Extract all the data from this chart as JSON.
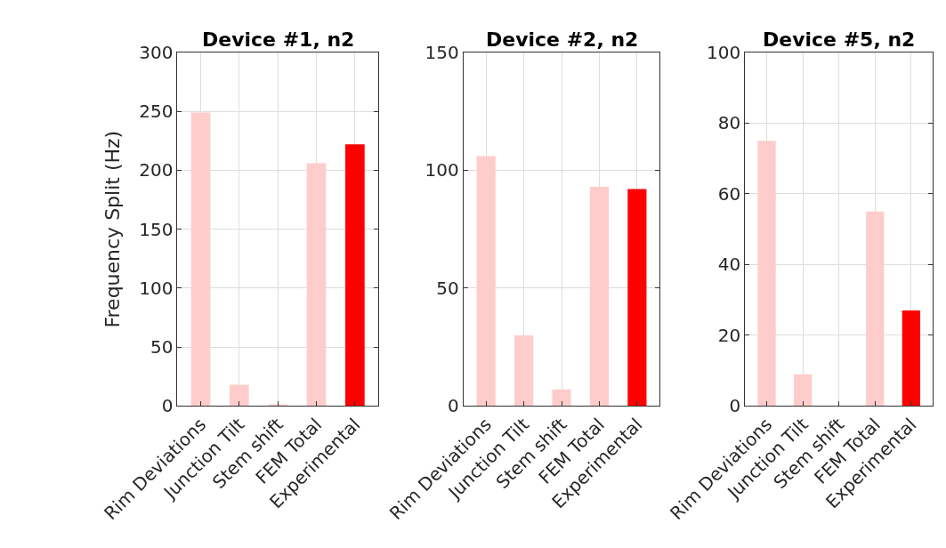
{
  "chart_data": [
    {
      "type": "bar",
      "title": "Device #1, n2",
      "ylabel": "Frequency Split (Hz)",
      "categories": [
        "Rim Deviations",
        "Junction Tilt",
        "Stem shift",
        "FEM Total",
        "Experimental"
      ],
      "values": [
        249,
        18,
        1.5,
        206,
        222
      ],
      "colors": [
        "#ffcccc",
        "#ffcccc",
        "#ffcccc",
        "#ffcccc",
        "#ff0000"
      ],
      "ylim": [
        0,
        300
      ],
      "yticks": [
        0,
        50,
        100,
        150,
        200,
        250,
        300
      ],
      "grid": true
    },
    {
      "type": "bar",
      "title": "Device #2, n2",
      "categories": [
        "Rim Deviations",
        "Junction Tilt",
        "Stem shift",
        "FEM Total",
        "Experimental"
      ],
      "values": [
        106,
        30,
        7,
        93,
        92
      ],
      "colors": [
        "#ffcccc",
        "#ffcccc",
        "#ffcccc",
        "#ffcccc",
        "#ff0000"
      ],
      "ylim": [
        0,
        150
      ],
      "yticks": [
        0,
        50,
        100,
        150
      ],
      "grid": true
    },
    {
      "type": "bar",
      "title": "Device #5, n2",
      "categories": [
        "Rim Deviations",
        "Junction Tilt",
        "Stem shift",
        "FEM Total",
        "Experimental"
      ],
      "values": [
        75,
        9,
        0,
        55,
        27
      ],
      "colors": [
        "#ffcccc",
        "#ffcccc",
        "#ffcccc",
        "#ffcccc",
        "#ff0000"
      ],
      "ylim": [
        0,
        100
      ],
      "yticks": [
        0,
        20,
        40,
        60,
        80,
        100
      ],
      "grid": true
    }
  ]
}
